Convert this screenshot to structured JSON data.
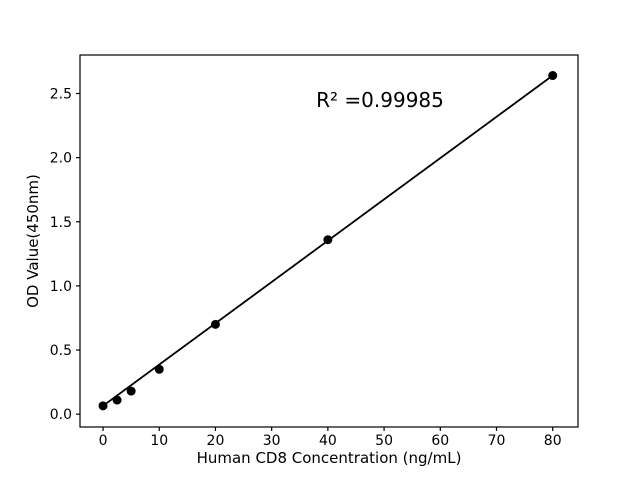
{
  "figure": {
    "background": "#ffffff",
    "annotation": "R² =0.99985",
    "xlabel": "Human CD8 Concentration (ng/mL)",
    "ylabel": "OD Value(450nm)"
  },
  "chart_data": {
    "type": "scatter",
    "title": "",
    "xlabel": "Human CD8 Concentration (ng/mL)",
    "ylabel": "OD Value(450nm)",
    "x": [
      0,
      2.5,
      5,
      10,
      20,
      40,
      80
    ],
    "y": [
      0.065,
      0.11,
      0.18,
      0.35,
      0.7,
      1.36,
      2.64
    ],
    "fit_line": "straight line from first point to last point",
    "r_squared": 0.99985,
    "annotation": "R² =0.99985",
    "xlim": [
      -4.1,
      84.5
    ],
    "ylim": [
      -0.1,
      2.8
    ],
    "xticks": [
      0,
      10,
      20,
      30,
      40,
      50,
      60,
      70,
      80
    ],
    "yticks": [
      0.0,
      0.5,
      1.0,
      1.5,
      2.0,
      2.5
    ],
    "ytick_decimals": 1,
    "grid": false,
    "legend": null,
    "marker_color": "#000000",
    "line_color": "#000000",
    "axis_color": "#000000",
    "marker_radius": 4.5,
    "line_width": 1.8
  }
}
